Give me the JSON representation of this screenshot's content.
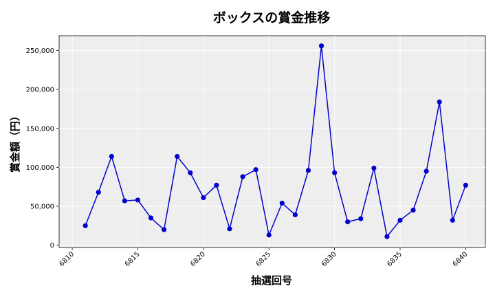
{
  "chart_data": {
    "type": "line",
    "title": "ボックスの賞金推移",
    "xlabel": "抽選回号",
    "ylabel": "賞金額（円）",
    "xlim": [
      6809.0,
      6841.5
    ],
    "ylim": [
      -3000,
      269000
    ],
    "xticks": [
      6810,
      6815,
      6820,
      6825,
      6830,
      6835,
      6840
    ],
    "xtick_labels": [
      "6810",
      "6815",
      "6820",
      "6825",
      "6830",
      "6835",
      "6840"
    ],
    "yticks": [
      0,
      50000,
      100000,
      150000,
      200000,
      250000
    ],
    "ytick_labels": [
      "0",
      "50,000",
      "100,000",
      "150,000",
      "200,000",
      "250,000"
    ],
    "grid": true,
    "series": [
      {
        "color": "#0000cc",
        "x": [
          6811,
          6812,
          6813,
          6814,
          6815,
          6816,
          6817,
          6818,
          6819,
          6820,
          6821,
          6822,
          6823,
          6824,
          6825,
          6826,
          6827,
          6828,
          6829,
          6830,
          6831,
          6832,
          6833,
          6834,
          6835,
          6836,
          6837,
          6838,
          6839,
          6840
        ],
        "values": [
          25000,
          68000,
          114000,
          57000,
          58000,
          35000,
          20000,
          114000,
          93000,
          61000,
          77000,
          21000,
          88000,
          97000,
          13000,
          54000,
          39000,
          96000,
          256000,
          93000,
          30000,
          34000,
          99000,
          11000,
          32000,
          45000,
          95000,
          184000,
          32000,
          77000
        ]
      }
    ]
  }
}
